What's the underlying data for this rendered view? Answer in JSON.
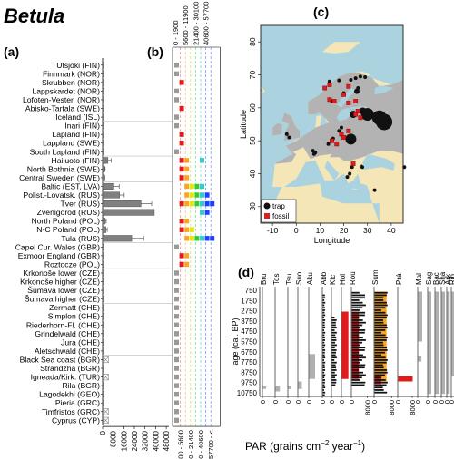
{
  "title": "Betula",
  "panels": {
    "a": "(a)",
    "b": "(b)",
    "c": "(c)",
    "d": "(d)"
  },
  "xlabel_bottom": "PAR (grains cm",
  "xlabel_exp1": "−2",
  "xlabel_mid": " year",
  "xlabel_exp2": "−1",
  "xlabel_end": ")",
  "colors": {
    "grey": "#999999",
    "dark": "#666666",
    "red": "#e31a1c",
    "orange": "#f5a623",
    "yellow": "#e6e600",
    "green": "#33cc33",
    "cyan": "#33cccc",
    "blue": "#1f3fff",
    "sea": "#aad3df",
    "land": "#f5e6b8",
    "forest": "#b3b3b3"
  },
  "chart_data": [
    {
      "type": "bar",
      "panel": "a",
      "categories": [
        "Utsjoki (FIN)",
        "Finnmark (NOR)",
        "Skrubben (NOR)",
        "Lappskardet (NOR)",
        "Lofoten-Vester. (NOR)",
        "Abisko-Tarfala (SWE)",
        "Iceland (ISL)",
        "Inari (FIN)",
        "Lapland (FIN)",
        "Lappland (SWE)",
        "South Lapland (FIN)",
        "Hailuoto (FIN)",
        "North Bothnia (SWE)",
        "Central Sweden (SWE)",
        "Baltic (EST, LVA)",
        "Polist.-Lovatsk. (RUS)",
        "Tver (RUS)",
        "Zvenigorod (RUS)",
        "North Poland (POL)",
        "N-C Poland (POL)",
        "Tula (RUS)",
        "Capel Cur. Wales (GBR)",
        "Exmoor England (GBR)",
        "Roztocze (POL)",
        "Krkonoše lower (CZE)",
        "Krkonoše higher (CZE)",
        "Šumava lower (CZE)",
        "Šumava higher (CZE)",
        "Zermatt (CHE)",
        "Simplon (CHE)",
        "Riederhorn-Fl. (CHE)",
        "Grindelwald (CHE)",
        "Jura (CHE)",
        "Aletschwald (CHE)",
        "Black Sea coast (BGR)",
        "Strandzha (BGR)",
        "Igneada/Kirk. (TUR)",
        "Rila (BGR)",
        "Lagodekhi (GEO)",
        "Pieria (GRC)",
        "Timfristos (GRC)",
        "Cyprus (CYP)"
      ],
      "values": [
        300,
        400,
        900,
        250,
        250,
        300,
        200,
        250,
        350,
        300,
        200,
        4000,
        1500,
        1400,
        8500,
        12800,
        29000,
        39000,
        2000,
        2500,
        22000,
        400,
        500,
        600,
        250,
        200,
        200,
        150,
        200,
        250,
        150,
        200,
        150,
        150,
        0,
        700,
        0,
        500,
        1200,
        500,
        0,
        0
      ],
      "errors": [
        0,
        0,
        0,
        0,
        0,
        0,
        0,
        0,
        0,
        0,
        0,
        2500,
        400,
        300,
        4000,
        3500,
        8000,
        0,
        700,
        1000,
        9000,
        0,
        0,
        0,
        0,
        0,
        0,
        0,
        0,
        0,
        0,
        0,
        0,
        0,
        0,
        0,
        0,
        0,
        0,
        0,
        0,
        0
      ],
      "no_data_crossed": [
        34,
        36,
        40,
        41
      ],
      "xticks": [
        "0",
        "8000",
        "16000",
        "24000",
        "32000",
        "40000",
        "48000"
      ],
      "xlim": [
        0,
        50000
      ]
    },
    {
      "type": "scatter",
      "panel": "b",
      "bins_top": [
        "0 - 1900",
        "5600 - 11900",
        "21400 - 30100",
        "40600 - 57700"
      ],
      "bins_bottom": [
        "1900 - 5600",
        "11900 - 21400",
        "30100 - 40600",
        "57700 - <"
      ],
      "points": [
        {
          "row": 0,
          "bins": [
            0
          ]
        },
        {
          "row": 1,
          "bins": [
            0
          ]
        },
        {
          "row": 2,
          "bins": [
            1
          ]
        },
        {
          "row": 3,
          "bins": [
            0
          ]
        },
        {
          "row": 4,
          "bins": [
            0
          ]
        },
        {
          "row": 5,
          "bins": [
            1
          ]
        },
        {
          "row": 6,
          "bins": [
            0
          ]
        },
        {
          "row": 7,
          "bins": [
            0
          ]
        },
        {
          "row": 8,
          "bins": [
            1
          ]
        },
        {
          "row": 9,
          "bins": [
            1
          ]
        },
        {
          "row": 10,
          "bins": [
            0
          ]
        },
        {
          "row": 11,
          "bins": [
            1,
            2,
            5
          ]
        },
        {
          "row": 12,
          "bins": [
            1,
            2
          ]
        },
        {
          "row": 13,
          "bins": [
            1,
            2
          ]
        },
        {
          "row": 14,
          "bins": [
            2,
            3,
            4,
            5
          ]
        },
        {
          "row": 15,
          "bins": [
            2,
            3,
            4,
            5,
            6
          ]
        },
        {
          "row": 16,
          "bins": [
            1,
            2,
            3,
            4,
            5,
            6,
            7
          ]
        },
        {
          "row": 17,
          "bins": [
            5,
            6
          ]
        },
        {
          "row": 18,
          "bins": [
            1,
            2
          ]
        },
        {
          "row": 19,
          "bins": [
            1,
            2,
            3
          ]
        },
        {
          "row": 20,
          "bins": [
            2,
            3,
            4,
            5,
            6,
            7
          ]
        },
        {
          "row": 21,
          "bins": [
            0
          ]
        },
        {
          "row": 22,
          "bins": [
            1,
            2
          ]
        },
        {
          "row": 23,
          "bins": [
            1,
            2
          ]
        },
        {
          "row": 24,
          "bins": [
            0
          ]
        },
        {
          "row": 25,
          "bins": [
            0
          ]
        },
        {
          "row": 26,
          "bins": [
            0
          ]
        },
        {
          "row": 27,
          "bins": [
            0
          ]
        },
        {
          "row": 28,
          "bins": [
            0
          ]
        },
        {
          "row": 29,
          "bins": [
            0
          ]
        },
        {
          "row": 30,
          "bins": [
            0
          ]
        },
        {
          "row": 31,
          "bins": [
            0
          ]
        },
        {
          "row": 32,
          "bins": [
            0
          ]
        },
        {
          "row": 33,
          "bins": [
            0
          ]
        },
        {
          "row": 34,
          "bins": [
            0
          ]
        },
        {
          "row": 35,
          "bins": [
            0
          ]
        },
        {
          "row": 36,
          "bins": [
            0
          ]
        },
        {
          "row": 37,
          "bins": [
            0
          ]
        },
        {
          "row": 38,
          "bins": [
            0
          ]
        },
        {
          "row": 39,
          "bins": [
            0
          ]
        },
        {
          "row": 40,
          "bins": [
            0
          ]
        },
        {
          "row": 41,
          "bins": [
            0
          ]
        }
      ]
    },
    {
      "type": "scatter",
      "panel": "c",
      "xlabel": "Longitude",
      "ylabel": "Latitude",
      "xlim": [
        -15,
        45
      ],
      "ylim": [
        25,
        85
      ],
      "xticks": [
        "-10",
        "0",
        "10",
        "20",
        "30",
        "40"
      ],
      "yticks": [
        "30",
        "40",
        "50",
        "60",
        "70",
        "80"
      ],
      "legend": [
        "trap",
        "fossil"
      ],
      "traps": [
        [
          25,
          69
        ],
        [
          27,
          69.5
        ],
        [
          29,
          69.3
        ],
        [
          23,
          68.5
        ],
        [
          18,
          68.3
        ],
        [
          14,
          68
        ],
        [
          26,
          66
        ],
        [
          25.5,
          65
        ],
        [
          20,
          64.5
        ],
        [
          15,
          62
        ],
        [
          24,
          58
        ],
        [
          30,
          58
        ],
        [
          28,
          59
        ],
        [
          35,
          57
        ],
        [
          37,
          55.7
        ],
        [
          37,
          54
        ],
        [
          19,
          54
        ],
        [
          18,
          53
        ],
        [
          23,
          50.5
        ],
        [
          15.5,
          50.7
        ],
        [
          13.5,
          49
        ],
        [
          -3,
          51
        ],
        [
          -4,
          52
        ],
        [
          8,
          46.5
        ],
        [
          7.5,
          46
        ],
        [
          7,
          47
        ],
        [
          8,
          46.4
        ],
        [
          27.5,
          42.5
        ],
        [
          23.5,
          42
        ],
        [
          27.8,
          42
        ],
        [
          45.5,
          42
        ],
        [
          22.5,
          40
        ],
        [
          21.5,
          39
        ],
        [
          33,
          35
        ],
        [
          -20,
          64
        ]
      ],
      "trap_sizes": [
        2,
        2,
        2,
        2,
        2,
        2,
        2,
        3,
        2,
        2,
        4,
        7,
        4,
        8,
        9,
        2,
        2,
        2,
        6,
        2,
        2,
        2,
        2,
        2,
        2,
        2,
        2,
        1,
        2,
        2,
        2,
        2,
        2,
        2,
        2
      ],
      "fossils": [
        [
          14,
          67
        ],
        [
          12,
          66
        ],
        [
          22,
          66.5
        ],
        [
          20,
          64
        ],
        [
          14,
          62.5
        ],
        [
          16,
          62
        ],
        [
          22,
          61.5
        ],
        [
          25,
          62
        ],
        [
          25,
          58
        ],
        [
          26,
          59
        ],
        [
          27,
          57
        ],
        [
          22,
          53
        ],
        [
          19,
          52
        ],
        [
          15,
          50
        ],
        [
          20,
          51
        ],
        [
          17,
          49
        ],
        [
          24,
          43
        ]
      ]
    },
    {
      "type": "bar",
      "panel": "d",
      "ylabel": "age (cal. BP)",
      "yticks": [
        "750",
        "1750",
        "2750",
        "3750",
        "4750",
        "5750",
        "6750",
        "7750",
        "8750",
        "9750",
        "10750"
      ],
      "sites": [
        "Bru",
        "Tos",
        "Tsu",
        "Suo",
        "Aku",
        "Abb",
        "Kic",
        "Hol",
        "Rou",
        "Sum",
        "Prá",
        "Mal",
        "Sag",
        "Bac",
        "Sha",
        "Ark",
        "Rib",
        "Vou"
      ],
      "xticks_groups": [
        [
          "0"
        ],
        [
          "0"
        ],
        [
          "0"
        ],
        [
          "0"
        ],
        [
          "0"
        ],
        [
          "0"
        ],
        [
          "0"
        ],
        [
          "0"
        ],
        [
          "0",
          "8000"
        ],
        [
          "0",
          "8000"
        ],
        [
          "0",
          "8000"
        ],
        [
          "0"
        ],
        [
          "0"
        ],
        [
          "0"
        ],
        [
          "0"
        ],
        [
          "0"
        ],
        [
          "0"
        ],
        [
          "0"
        ]
      ]
    }
  ]
}
